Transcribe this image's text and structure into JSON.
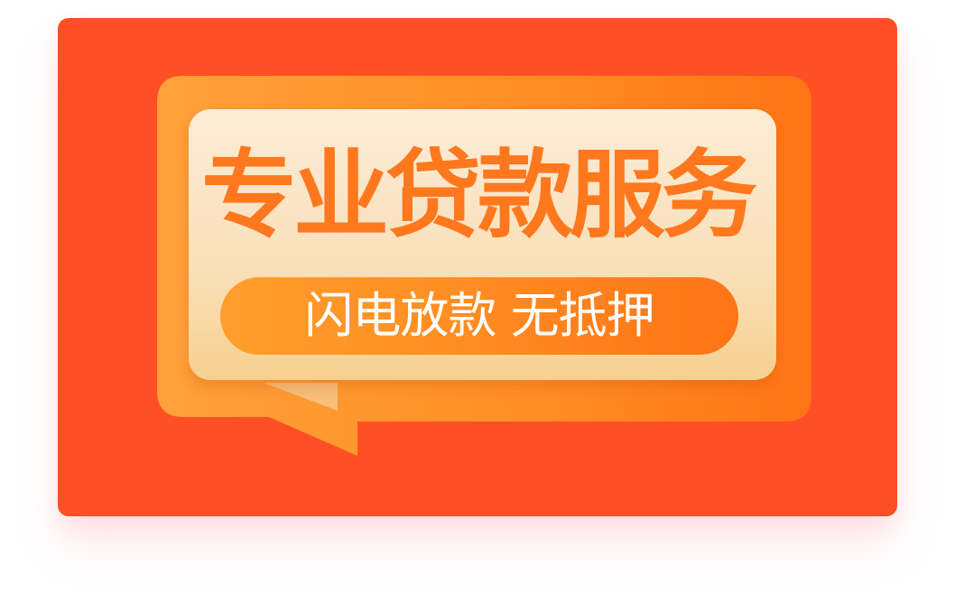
{
  "banner": {
    "title": "专业贷款服务",
    "subtitle": "闪电放款 无抵押"
  },
  "colors": {
    "background": "#ff4f24",
    "title": "#ff781d",
    "bubble_outer": "#ff8d21",
    "bubble_inner": "#fbe7c8",
    "pill": "#ff861f",
    "subtitle_text": "#ffffff"
  },
  "icons": {
    "speech_bubble": "speech-bubble-icon"
  }
}
